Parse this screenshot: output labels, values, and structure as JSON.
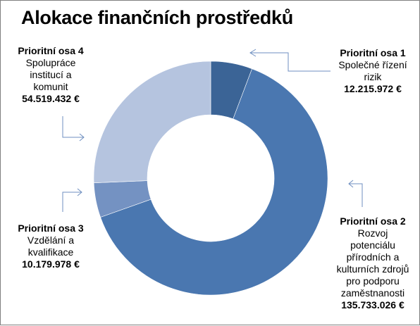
{
  "title": "Alokace finančních prostředků",
  "chart_data": {
    "type": "pie",
    "donut": true,
    "title": "Alokace finančních prostředků",
    "currency": "€",
    "slices": [
      {
        "name": "Prioritní osa 1",
        "lines": [
          "Společné řízení",
          "rizik"
        ],
        "value": 12215972,
        "value_label": "12.215.972 €",
        "color": "#3b6496"
      },
      {
        "name": "Prioritní osa 2",
        "lines": [
          "Rozvoj",
          "potenciálu",
          "přírodních a",
          "kulturních zdrojů",
          "pro podporu",
          "zaměstnanosti"
        ],
        "value": 135733026,
        "value_label": "135.733.026 €",
        "color": "#4a77b0"
      },
      {
        "name": "Prioritní osa 3",
        "lines": [
          "Vzdělání a",
          "kvalifikace"
        ],
        "value": 10179978,
        "value_label": "10.179.978 €",
        "color": "#7492c2"
      },
      {
        "name": "Prioritní osa 4",
        "lines": [
          "Spolupráce",
          "institucí a",
          "komunit"
        ],
        "value": 54519432,
        "value_label": "54.519.432 €",
        "color": "#b5c4df"
      }
    ],
    "legend": "none",
    "data_labels": "outside with leader arrows"
  }
}
